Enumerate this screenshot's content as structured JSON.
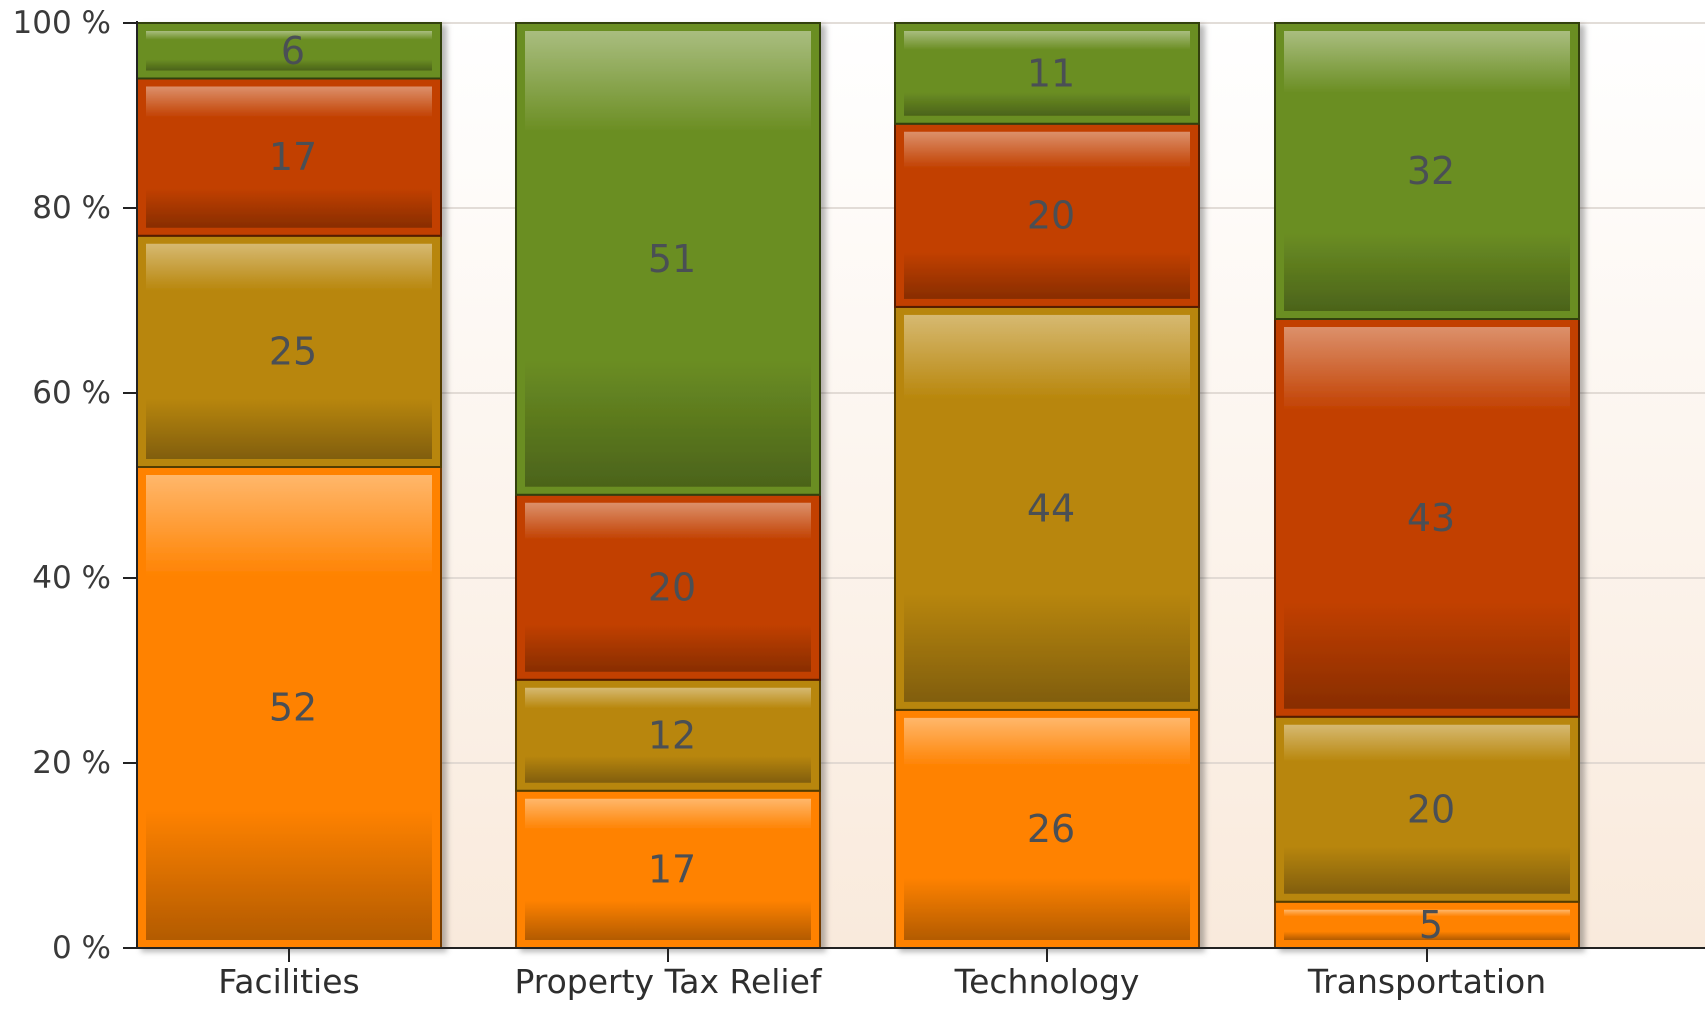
{
  "chart_data": {
    "type": "bar",
    "stacked": true,
    "normalized": true,
    "title": "",
    "xlabel": "",
    "ylabel": "",
    "ylim": [
      0,
      100
    ],
    "yticks": [
      "0 %",
      "20 %",
      "40 %",
      "60 %",
      "80 %",
      "100 %"
    ],
    "categories": [
      "Facilities",
      "Property Tax Relief",
      "Technology",
      "Transportation"
    ],
    "series": [
      {
        "values": [
          52,
          17,
          26,
          5
        ],
        "color": "#ff8200"
      },
      {
        "values": [
          25,
          12,
          44,
          20
        ],
        "color": "#b8860b"
      },
      {
        "values": [
          17,
          20,
          20,
          43
        ],
        "color": "#c24000"
      },
      {
        "values": [
          6,
          51,
          11,
          32
        ],
        "color": "#6b8e23"
      }
    ],
    "grid": true,
    "legend": "none"
  }
}
